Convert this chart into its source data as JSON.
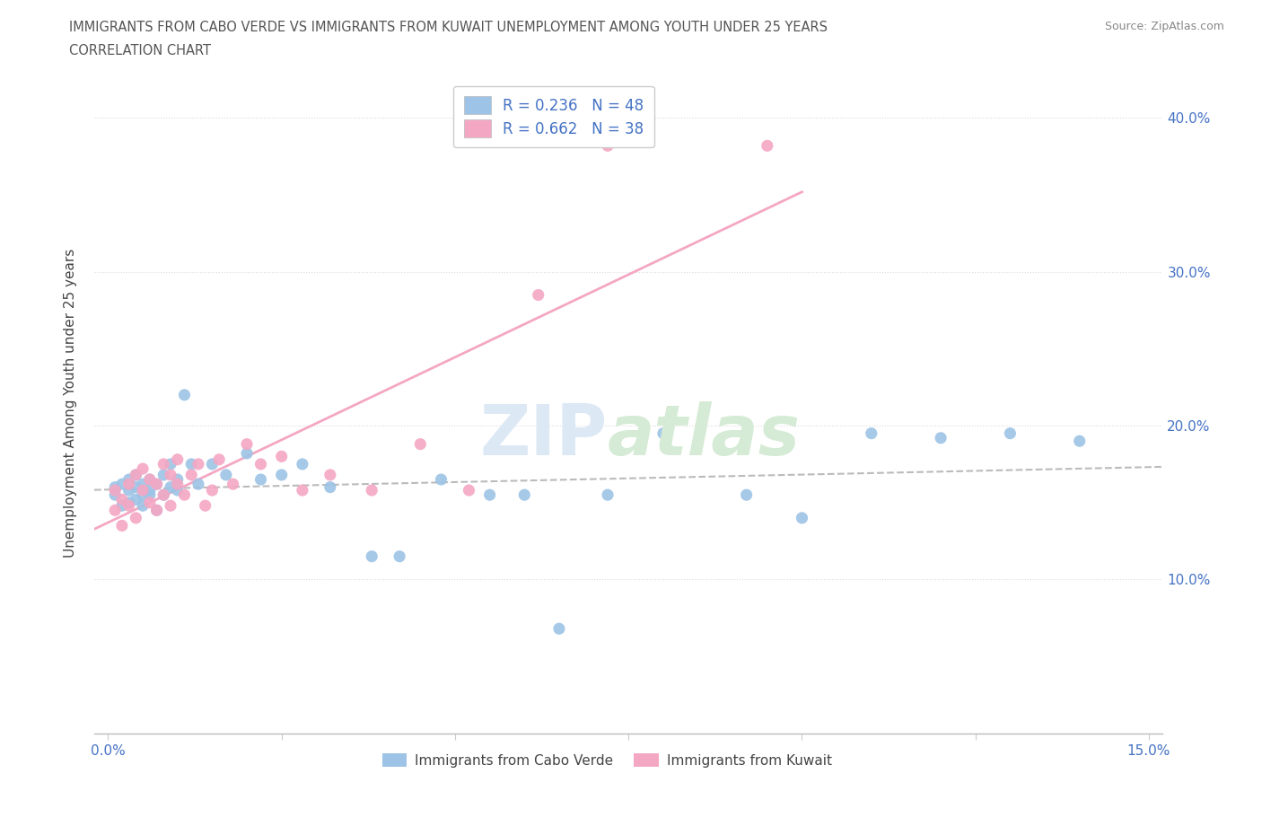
{
  "title_line1": "IMMIGRANTS FROM CABO VERDE VS IMMIGRANTS FROM KUWAIT UNEMPLOYMENT AMONG YOUTH UNDER 25 YEARS",
  "title_line2": "CORRELATION CHART",
  "source_text": "Source: ZipAtlas.com",
  "ylabel": "Unemployment Among Youth under 25 years",
  "xlim": [
    -0.002,
    0.152
  ],
  "ylim": [
    0.0,
    0.43
  ],
  "xticks": [
    0.0,
    0.025,
    0.05,
    0.075,
    0.1,
    0.125,
    0.15
  ],
  "xtick_labels": [
    "0.0%",
    "",
    "",
    "",
    "",
    "",
    "15.0%"
  ],
  "yticks": [
    0.1,
    0.2,
    0.3,
    0.4
  ],
  "ytick_labels": [
    "10.0%",
    "20.0%",
    "30.0%",
    "40.0%"
  ],
  "cabo_verde_color": "#9DC3E6",
  "kuwait_color": "#F4A7C3",
  "cabo_verde_trend_color": "#BBBBBB",
  "kuwait_trend_color": "#F4A7C3",
  "cabo_trend_line_style": "--",
  "kuwait_trend_line_style": "-",
  "legend_R_cabo": "R = 0.236",
  "legend_N_cabo": "N = 48",
  "legend_R_kuwait": "R = 0.662",
  "legend_N_kuwait": "N = 38",
  "cabo_verde_x": [
    0.001,
    0.001,
    0.002,
    0.002,
    0.003,
    0.003,
    0.003,
    0.004,
    0.004,
    0.004,
    0.005,
    0.005,
    0.005,
    0.006,
    0.006,
    0.006,
    0.007,
    0.007,
    0.008,
    0.008,
    0.009,
    0.009,
    0.01,
    0.01,
    0.011,
    0.012,
    0.013,
    0.015,
    0.017,
    0.02,
    0.022,
    0.025,
    0.028,
    0.032,
    0.038,
    0.042,
    0.048,
    0.055,
    0.06,
    0.065,
    0.072,
    0.08,
    0.092,
    0.1,
    0.11,
    0.12,
    0.13,
    0.14
  ],
  "cabo_verde_y": [
    0.155,
    0.16,
    0.148,
    0.162,
    0.15,
    0.158,
    0.165,
    0.152,
    0.16,
    0.168,
    0.155,
    0.148,
    0.162,
    0.158,
    0.165,
    0.155,
    0.145,
    0.162,
    0.155,
    0.168,
    0.16,
    0.175,
    0.165,
    0.158,
    0.22,
    0.175,
    0.162,
    0.175,
    0.168,
    0.182,
    0.165,
    0.168,
    0.175,
    0.16,
    0.115,
    0.115,
    0.165,
    0.155,
    0.155,
    0.068,
    0.155,
    0.195,
    0.155,
    0.14,
    0.195,
    0.192,
    0.195,
    0.19
  ],
  "kuwait_x": [
    0.001,
    0.001,
    0.002,
    0.002,
    0.003,
    0.003,
    0.004,
    0.004,
    0.005,
    0.005,
    0.006,
    0.006,
    0.007,
    0.007,
    0.008,
    0.008,
    0.009,
    0.009,
    0.01,
    0.01,
    0.011,
    0.012,
    0.013,
    0.014,
    0.015,
    0.016,
    0.018,
    0.02,
    0.022,
    0.025,
    0.028,
    0.032,
    0.038,
    0.045,
    0.052,
    0.062,
    0.072,
    0.095
  ],
  "kuwait_y": [
    0.145,
    0.158,
    0.135,
    0.152,
    0.148,
    0.162,
    0.14,
    0.168,
    0.158,
    0.172,
    0.15,
    0.165,
    0.162,
    0.145,
    0.155,
    0.175,
    0.148,
    0.168,
    0.162,
    0.178,
    0.155,
    0.168,
    0.175,
    0.148,
    0.158,
    0.178,
    0.162,
    0.188,
    0.175,
    0.18,
    0.158,
    0.168,
    0.158,
    0.188,
    0.158,
    0.285,
    0.382,
    0.382
  ]
}
